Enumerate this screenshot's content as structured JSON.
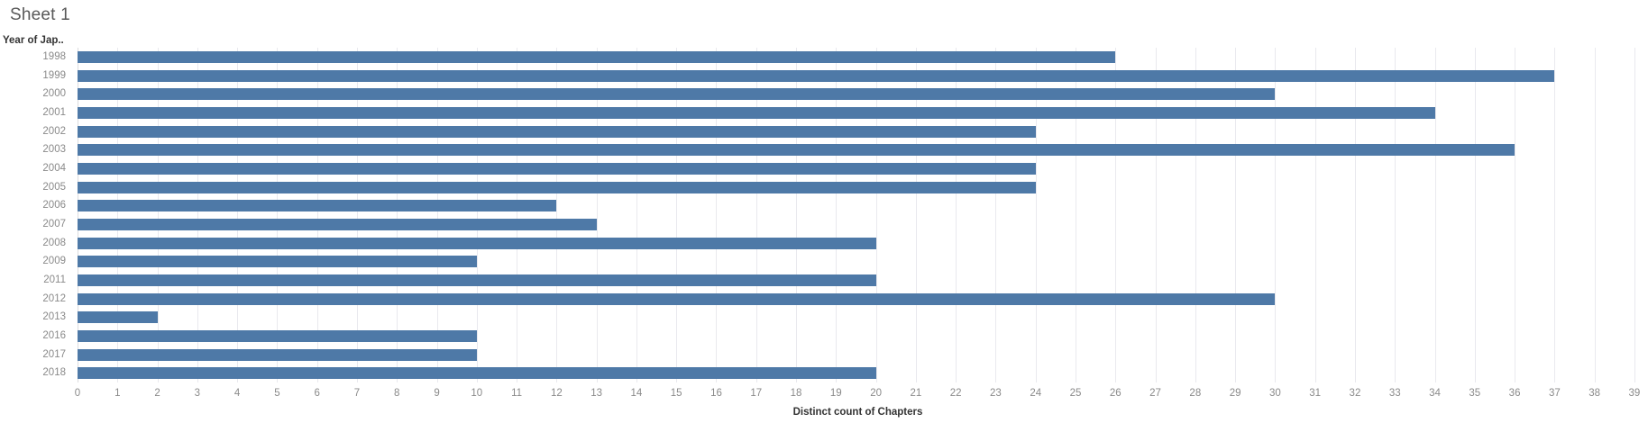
{
  "title": "Sheet 1",
  "row_header": "Year of Jap..",
  "chart_data": {
    "type": "bar",
    "orientation": "horizontal",
    "title": "Sheet 1",
    "row_axis_label": "Year of Jap..",
    "xlabel": "Distinct count of Chapters",
    "categories": [
      "1998",
      "1999",
      "2000",
      "2001",
      "2002",
      "2003",
      "2004",
      "2005",
      "2006",
      "2007",
      "2008",
      "2009",
      "2011",
      "2012",
      "2013",
      "2016",
      "2017",
      "2018"
    ],
    "values": [
      26,
      37,
      30,
      34,
      24,
      36,
      24,
      24,
      12,
      13,
      20,
      10,
      20,
      30,
      2,
      10,
      10,
      20
    ],
    "xlim": [
      0,
      39
    ],
    "tick_step": 1,
    "grid": true,
    "legend": "none",
    "colors": {
      "bar": "#4e79a7",
      "gridline": "#e9e9ee",
      "zero_line": "#dcdcdf",
      "tick_label": "#8a8a8a",
      "axis_title": "#333333",
      "sheet_title": "#595959"
    }
  }
}
